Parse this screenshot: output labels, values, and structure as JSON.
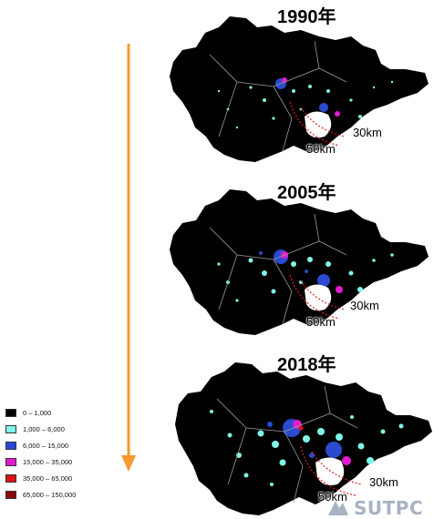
{
  "maps": [
    {
      "year_label": "1990年",
      "near_ring": "30km",
      "far_ring": "50km"
    },
    {
      "year_label": "2005年",
      "near_ring": "30km",
      "far_ring": "50km"
    },
    {
      "year_label": "2018年",
      "near_ring": "30km",
      "far_ring": "50km"
    }
  ],
  "legend": [
    {
      "label": "0 – 1,000",
      "color": "#000000"
    },
    {
      "label": "1,000  – 6,000",
      "color": "#7ff7e8"
    },
    {
      "label": "6,000  – 15,000",
      "color": "#2946d8"
    },
    {
      "label": "15,000  – 35,000",
      "color": "#e21bd1"
    },
    {
      "label": "35,000  – 65,000",
      "color": "#e01010"
    },
    {
      "label": "65,000  – 150,000",
      "color": "#8b0a0a"
    }
  ],
  "arrow_color": "#f59a2b",
  "ring_color": "#e02020",
  "watermark": "SUTPC"
}
